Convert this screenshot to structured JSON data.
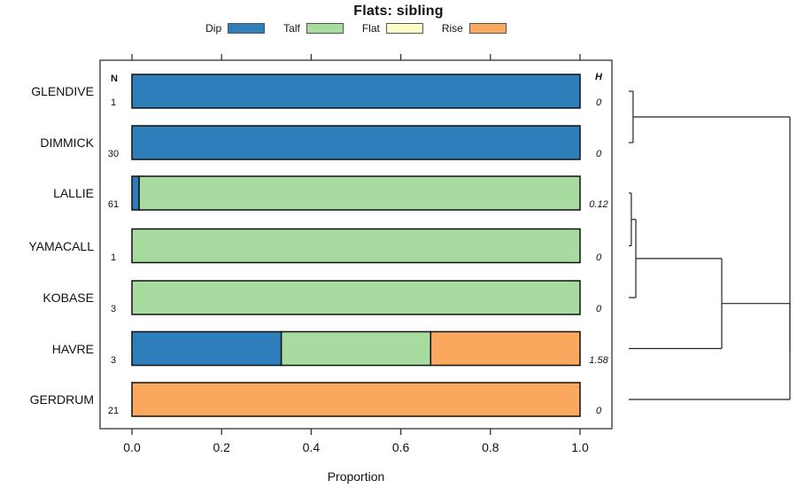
{
  "title": "Flats: sibling",
  "xlabel": "Proportion",
  "columns": {
    "n": "N",
    "h": "H"
  },
  "legend": [
    "Dip",
    "Talf",
    "Flat",
    "Rise"
  ],
  "colors": {
    "Dip": "#2e7ebc",
    "Talf": "#a8dba0",
    "Flat": "#fbfcc6",
    "Rise": "#faa85e",
    "bar_border": "#111111",
    "frame": "#333333",
    "dendro_line": "#222222"
  },
  "chart_data": {
    "type": "bar",
    "variant": "horizontal-stacked-proportion-with-dendrogram",
    "title": "Flats: sibling",
    "xlabel": "Proportion",
    "xlim": [
      0,
      1
    ],
    "xticks": [
      "0.0",
      "0.2",
      "0.4",
      "0.6",
      "0.8",
      "1.0"
    ],
    "categories": [
      "GLENDIVE",
      "DIMMICK",
      "LALLIE",
      "YAMACALL",
      "KOBASE",
      "HAVRE",
      "GERDRUM"
    ],
    "rows": [
      {
        "label": "GLENDIVE",
        "n": "1",
        "h": "0",
        "segments": [
          {
            "name": "Dip",
            "value": 1.0
          }
        ]
      },
      {
        "label": "DIMMICK",
        "n": "30",
        "h": "0",
        "segments": [
          {
            "name": "Dip",
            "value": 1.0
          }
        ]
      },
      {
        "label": "LALLIE",
        "n": "61",
        "h": "0.12",
        "segments": [
          {
            "name": "Dip",
            "value": 0.016
          },
          {
            "name": "Talf",
            "value": 0.984
          }
        ]
      },
      {
        "label": "YAMACALL",
        "n": "1",
        "h": "0",
        "segments": [
          {
            "name": "Talf",
            "value": 1.0
          }
        ]
      },
      {
        "label": "KOBASE",
        "n": "3",
        "h": "0",
        "segments": [
          {
            "name": "Talf",
            "value": 1.0
          }
        ]
      },
      {
        "label": "HAVRE",
        "n": "3",
        "h": "1.58",
        "segments": [
          {
            "name": "Dip",
            "value": 0.3333
          },
          {
            "name": "Talf",
            "value": 0.3333
          },
          {
            "name": "Rise",
            "value": 0.3334
          }
        ]
      },
      {
        "label": "GERDRUM",
        "n": "21",
        "h": "0",
        "segments": [
          {
            "name": "Rise",
            "value": 1.0
          }
        ]
      }
    ],
    "dendrogram": {
      "leaf_order": [
        "GLENDIVE",
        "DIMMICK",
        "LALLIE",
        "YAMACALL",
        "KOBASE",
        "HAVRE",
        "GERDRUM"
      ],
      "merges": [
        {
          "a": "leaf:0",
          "b": "leaf:1",
          "h": 0.027
        },
        {
          "a": "leaf:2",
          "b": "leaf:3",
          "h": 0.016
        },
        {
          "a": "merge:1",
          "b": "leaf:4",
          "h": 0.044
        },
        {
          "a": "merge:2",
          "b": "leaf:5",
          "h": 0.577
        },
        {
          "a": "merge:3",
          "b": "leaf:6",
          "h": 1.0
        },
        {
          "a": "merge:0",
          "b": "merge:4",
          "h": 1.0
        }
      ]
    }
  }
}
